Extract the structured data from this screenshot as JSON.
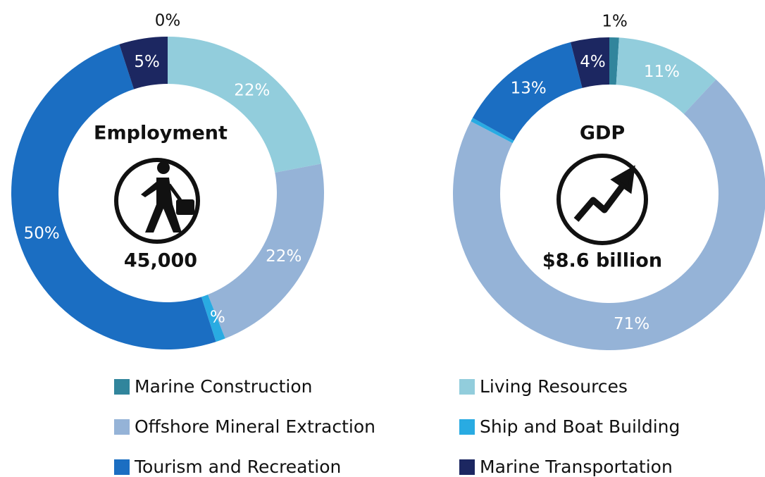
{
  "chart_data": [
    {
      "type": "pie",
      "title": "Employment",
      "center_value": "45,000",
      "categories": [
        "Marine Construction",
        "Living Resources",
        "Offshore Mineral Extraction",
        "Ship and Boat Building",
        "Tourism and Recreation",
        "Marine Transportation"
      ],
      "values": [
        0,
        22,
        22,
        1,
        50,
        5
      ],
      "value_labels": [
        "0%",
        "22%",
        "22%",
        "1%",
        "50%",
        "5%"
      ],
      "colors": [
        "#31859c",
        "#92cddc",
        "#95b3d7",
        "#29abe2",
        "#1b6ec2",
        "#1c2761"
      ]
    },
    {
      "type": "pie",
      "title": "GDP",
      "center_value": "$8.6 billion",
      "categories": [
        "Marine Construction",
        "Living Resources",
        "Offshore Mineral Extraction",
        "Ship and Boat Building",
        "Tourism and Recreation",
        "Marine Transportation"
      ],
      "values": [
        1,
        11,
        71,
        0.4,
        13,
        4
      ],
      "value_labels": [
        "1%",
        "11%",
        "71%",
        null,
        "13%",
        "4%"
      ],
      "colors": [
        "#31859c",
        "#92cddc",
        "#95b3d7",
        "#29abe2",
        "#1b6ec2",
        "#1c2761"
      ]
    }
  ]
}
